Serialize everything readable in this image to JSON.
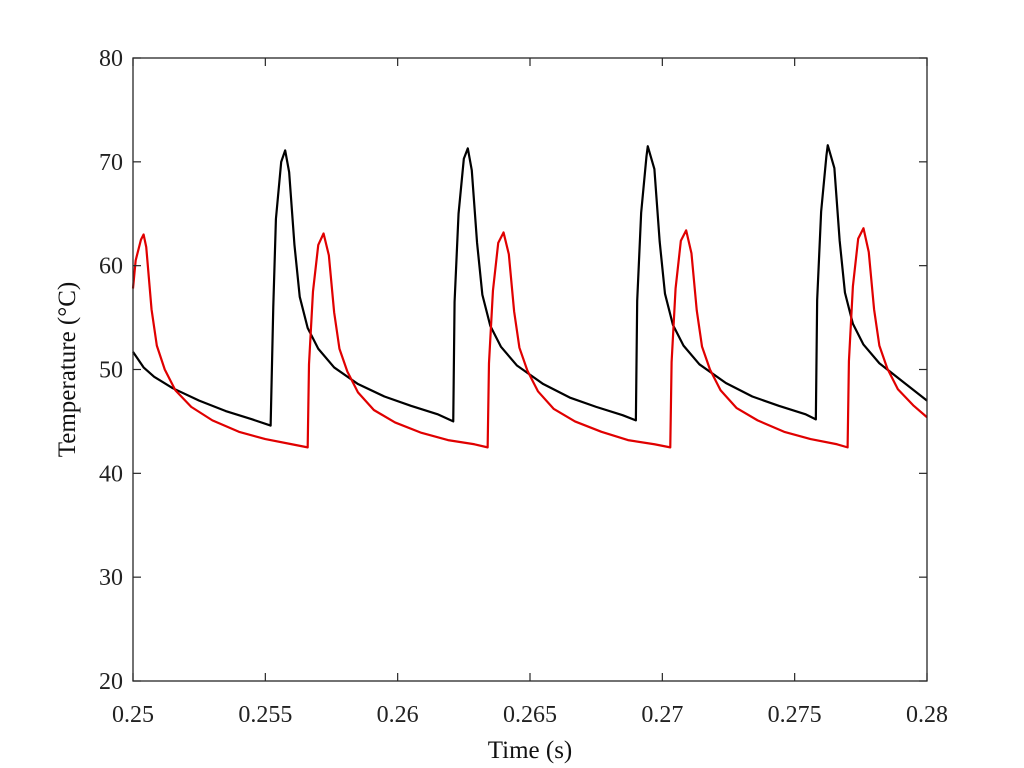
{
  "chart_data": {
    "type": "line",
    "title": "",
    "xlabel": "Time (s)",
    "ylabel": "Temperature (°C)",
    "xlim": [
      0.25,
      0.28
    ],
    "ylim": [
      20,
      80
    ],
    "xticks": [
      0.25,
      0.255,
      0.26,
      0.265,
      0.27,
      0.275,
      0.28
    ],
    "xtick_labels": [
      "0.25",
      "0.255",
      "0.26",
      "0.265",
      "0.27",
      "0.275",
      "0.28"
    ],
    "yticks": [
      20,
      30,
      40,
      50,
      60,
      70,
      80
    ],
    "ytick_labels": [
      "20",
      "30",
      "40",
      "50",
      "60",
      "70",
      "80"
    ],
    "grid": false,
    "legend": "none",
    "series": [
      {
        "color": "#000000",
        "points": [
          [
            0.25,
            51.7
          ],
          [
            0.2504,
            50.2
          ],
          [
            0.2508,
            49.3
          ],
          [
            0.2515,
            48.2
          ],
          [
            0.2525,
            47.0
          ],
          [
            0.2535,
            46.0
          ],
          [
            0.2545,
            45.2
          ],
          [
            0.2552,
            44.6
          ],
          [
            0.2553,
            56.0
          ],
          [
            0.2554,
            64.5
          ],
          [
            0.2556,
            70.0
          ],
          [
            0.25575,
            71.1
          ],
          [
            0.2559,
            69.0
          ],
          [
            0.2561,
            62.0
          ],
          [
            0.2563,
            57.0
          ],
          [
            0.2566,
            54.0
          ],
          [
            0.257,
            52.0
          ],
          [
            0.2576,
            50.2
          ],
          [
            0.2585,
            48.6
          ],
          [
            0.2595,
            47.4
          ],
          [
            0.2605,
            46.5
          ],
          [
            0.2615,
            45.7
          ],
          [
            0.2621,
            45.0
          ],
          [
            0.26215,
            56.5
          ],
          [
            0.2623,
            65.0
          ],
          [
            0.2625,
            70.3
          ],
          [
            0.26265,
            71.3
          ],
          [
            0.2628,
            69.2
          ],
          [
            0.263,
            62.2
          ],
          [
            0.2632,
            57.2
          ],
          [
            0.2635,
            54.2
          ],
          [
            0.2639,
            52.2
          ],
          [
            0.2645,
            50.4
          ],
          [
            0.2655,
            48.6
          ],
          [
            0.2665,
            47.3
          ],
          [
            0.2675,
            46.4
          ],
          [
            0.2685,
            45.6
          ],
          [
            0.269,
            45.1
          ],
          [
            0.26905,
            56.6
          ],
          [
            0.2692,
            65.1
          ],
          [
            0.2694,
            70.5
          ],
          [
            0.26945,
            71.5
          ],
          [
            0.2697,
            69.3
          ],
          [
            0.2699,
            62.3
          ],
          [
            0.2701,
            57.3
          ],
          [
            0.2704,
            54.3
          ],
          [
            0.2708,
            52.3
          ],
          [
            0.2714,
            50.5
          ],
          [
            0.2724,
            48.7
          ],
          [
            0.2734,
            47.4
          ],
          [
            0.2744,
            46.5
          ],
          [
            0.2754,
            45.7
          ],
          [
            0.2758,
            45.2
          ],
          [
            0.27585,
            56.7
          ],
          [
            0.276,
            65.2
          ],
          [
            0.2762,
            70.6
          ],
          [
            0.27625,
            71.6
          ],
          [
            0.2765,
            69.4
          ],
          [
            0.2767,
            62.4
          ],
          [
            0.2769,
            57.4
          ],
          [
            0.2772,
            54.4
          ],
          [
            0.2776,
            52.4
          ],
          [
            0.2782,
            50.6
          ],
          [
            0.279,
            49.0
          ],
          [
            0.28,
            47.0
          ]
        ]
      },
      {
        "color": "#e00000",
        "points": [
          [
            0.25,
            57.8
          ],
          [
            0.2501,
            60.5
          ],
          [
            0.2503,
            62.5
          ],
          [
            0.2504,
            63.0
          ],
          [
            0.2505,
            61.8
          ],
          [
            0.2507,
            55.8
          ],
          [
            0.2509,
            52.3
          ],
          [
            0.2512,
            50.0
          ],
          [
            0.2516,
            48.0
          ],
          [
            0.2522,
            46.4
          ],
          [
            0.253,
            45.1
          ],
          [
            0.254,
            44.0
          ],
          [
            0.255,
            43.3
          ],
          [
            0.256,
            42.8
          ],
          [
            0.2566,
            42.5
          ],
          [
            0.25665,
            50.5
          ],
          [
            0.2568,
            57.5
          ],
          [
            0.257,
            62.0
          ],
          [
            0.2572,
            63.1
          ],
          [
            0.2574,
            61.0
          ],
          [
            0.2576,
            55.5
          ],
          [
            0.2578,
            52.0
          ],
          [
            0.2581,
            49.8
          ],
          [
            0.2585,
            47.8
          ],
          [
            0.2591,
            46.1
          ],
          [
            0.2599,
            44.9
          ],
          [
            0.2609,
            43.9
          ],
          [
            0.2619,
            43.2
          ],
          [
            0.2629,
            42.8
          ],
          [
            0.2634,
            42.5
          ],
          [
            0.26345,
            50.6
          ],
          [
            0.2636,
            57.6
          ],
          [
            0.2638,
            62.2
          ],
          [
            0.264,
            63.2
          ],
          [
            0.2642,
            61.1
          ],
          [
            0.2644,
            55.6
          ],
          [
            0.2646,
            52.1
          ],
          [
            0.2649,
            49.9
          ],
          [
            0.2653,
            47.9
          ],
          [
            0.2659,
            46.2
          ],
          [
            0.2667,
            45.0
          ],
          [
            0.2677,
            44.0
          ],
          [
            0.2687,
            43.2
          ],
          [
            0.2697,
            42.8
          ],
          [
            0.2703,
            42.5
          ],
          [
            0.27035,
            50.7
          ],
          [
            0.2705,
            57.8
          ],
          [
            0.2707,
            62.4
          ],
          [
            0.2709,
            63.4
          ],
          [
            0.2711,
            61.2
          ],
          [
            0.2713,
            55.7
          ],
          [
            0.2715,
            52.2
          ],
          [
            0.2718,
            50.0
          ],
          [
            0.2722,
            48.0
          ],
          [
            0.2728,
            46.3
          ],
          [
            0.2736,
            45.1
          ],
          [
            0.2746,
            44.0
          ],
          [
            0.2756,
            43.3
          ],
          [
            0.2766,
            42.8
          ],
          [
            0.277,
            42.5
          ],
          [
            0.27705,
            50.8
          ],
          [
            0.2772,
            58.0
          ],
          [
            0.2774,
            62.6
          ],
          [
            0.2776,
            63.6
          ],
          [
            0.2778,
            61.3
          ],
          [
            0.278,
            55.8
          ],
          [
            0.2782,
            52.3
          ],
          [
            0.2785,
            50.1
          ],
          [
            0.2789,
            48.1
          ],
          [
            0.2795,
            46.5
          ],
          [
            0.28,
            45.4
          ]
        ]
      }
    ]
  }
}
